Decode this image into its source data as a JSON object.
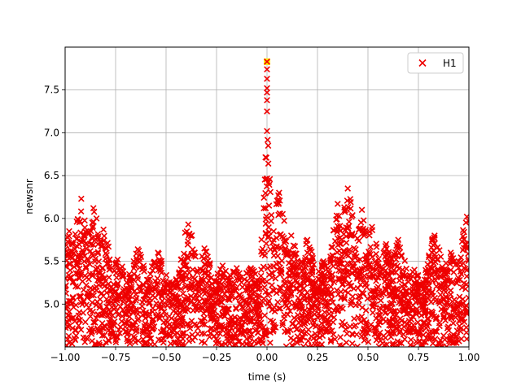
{
  "chart_data": {
    "type": "scatter",
    "title": "",
    "xlabel": "time (s)",
    "ylabel": "newsnr",
    "xlim": [
      -1.0,
      1.0
    ],
    "ylim": [
      4.5,
      8.0
    ],
    "xticks": [
      -1.0,
      -0.75,
      -0.5,
      -0.25,
      0.0,
      0.25,
      0.5,
      0.75,
      1.0
    ],
    "xtick_labels": [
      "−1.00",
      "−0.75",
      "−0.50",
      "−0.25",
      "0.00",
      "0.25",
      "0.50",
      "0.75",
      "1.00"
    ],
    "yticks": [
      5.0,
      5.5,
      6.0,
      6.5,
      7.0,
      7.5
    ],
    "ytick_labels": [
      "5.0",
      "5.5",
      "6.0",
      "6.5",
      "7.0",
      "7.5"
    ],
    "grid": true,
    "legend": {
      "placement": "top-right",
      "entries": [
        "H1"
      ]
    },
    "marker": "x",
    "colors": {
      "series": "#ee0000",
      "highlight": "#ffee00"
    },
    "series": [
      {
        "name": "H1",
        "peaks": [
          {
            "x": -0.98,
            "y": 5.85
          },
          {
            "x": -0.92,
            "y": 6.23
          },
          {
            "x": -0.86,
            "y": 6.12
          },
          {
            "x": -0.81,
            "y": 5.87
          },
          {
            "x": -0.74,
            "y": 5.52
          },
          {
            "x": -0.64,
            "y": 5.64
          },
          {
            "x": -0.54,
            "y": 5.6
          },
          {
            "x": -0.39,
            "y": 5.93
          },
          {
            "x": -0.31,
            "y": 5.65
          },
          {
            "x": -0.22,
            "y": 5.45
          },
          {
            "x": -0.15,
            "y": 5.42
          },
          {
            "x": -0.08,
            "y": 5.42
          },
          {
            "x": 0.0,
            "y": 7.02
          },
          {
            "x": 0.06,
            "y": 6.3
          },
          {
            "x": 0.12,
            "y": 5.8
          },
          {
            "x": 0.2,
            "y": 5.75
          },
          {
            "x": 0.28,
            "y": 5.5
          },
          {
            "x": 0.35,
            "y": 6.17
          },
          {
            "x": 0.4,
            "y": 6.35
          },
          {
            "x": 0.47,
            "y": 6.1
          },
          {
            "x": 0.52,
            "y": 5.9
          },
          {
            "x": 0.59,
            "y": 5.7
          },
          {
            "x": 0.65,
            "y": 5.75
          },
          {
            "x": 0.73,
            "y": 5.4
          },
          {
            "x": 0.83,
            "y": 5.8
          },
          {
            "x": 0.91,
            "y": 5.6
          },
          {
            "x": 0.99,
            "y": 6.02
          }
        ],
        "spike": [
          {
            "x": 0.0,
            "y": 7.25
          },
          {
            "x": 0.0,
            "y": 7.38
          },
          {
            "x": 0.0,
            "y": 7.47
          },
          {
            "x": 0.0,
            "y": 7.52
          },
          {
            "x": 0.0,
            "y": 7.63
          },
          {
            "x": 0.0,
            "y": 7.74
          }
        ],
        "highlight_point": {
          "x": 0.0,
          "y": 7.83
        }
      }
    ]
  }
}
